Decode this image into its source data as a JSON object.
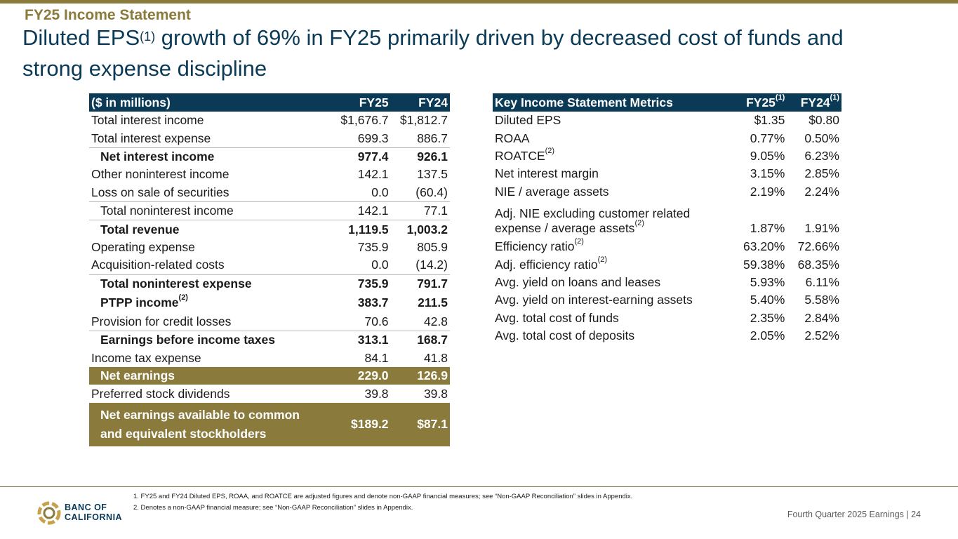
{
  "slide": {
    "section_label": "FY25 Income Statement",
    "headline_part1": "Diluted EPS",
    "headline_sup": "(1)",
    "headline_part2": " growth of 69% in FY25 primarily driven by decreased cost of funds and strong expense discipline"
  },
  "income_table": {
    "header": {
      "label": "($ in millions)",
      "fy25": "FY25",
      "fy24": "FY24"
    },
    "rows": [
      {
        "label": "Total interest income",
        "fy25": "$1,676.7",
        "fy24": "$1,812.7"
      },
      {
        "label": "Total interest expense",
        "fy25": "699.3",
        "fy24": "886.7"
      },
      {
        "label": "Net interest income",
        "fy25": "977.4",
        "fy24": "926.1"
      },
      {
        "label": "Other noninterest income",
        "fy25": "142.1",
        "fy24": "137.5"
      },
      {
        "label": "Loss on sale of securities",
        "fy25": "0.0",
        "fy24": "(60.4)"
      },
      {
        "label": "Total noninterest income",
        "fy25": "142.1",
        "fy24": "77.1"
      },
      {
        "label": "Total revenue",
        "fy25": "1,119.5",
        "fy24": "1,003.2"
      },
      {
        "label": "Operating expense",
        "fy25": "735.9",
        "fy24": "805.9"
      },
      {
        "label": "Acquisition-related costs",
        "fy25": "0.0",
        "fy24": "(14.2)"
      },
      {
        "label": "Total noninterest expense",
        "fy25": "735.9",
        "fy24": "791.7"
      },
      {
        "label": "PTPP income",
        "sup": "(2)",
        "fy25": "383.7",
        "fy24": "211.5"
      },
      {
        "label": "Provision for credit losses",
        "fy25": "70.6",
        "fy24": "42.8"
      },
      {
        "label": "Earnings before income taxes",
        "fy25": "313.1",
        "fy24": "168.7"
      },
      {
        "label": "Income tax expense",
        "fy25": "84.1",
        "fy24": "41.8"
      },
      {
        "label": "Net earnings",
        "fy25": "229.0",
        "fy24": "126.9"
      },
      {
        "label": "Preferred stock dividends",
        "fy25": "39.8",
        "fy24": "39.8"
      },
      {
        "label_line1": "Net earnings available to common",
        "label_line2": "and equivalent stockholders",
        "fy25": "$189.2",
        "fy24": "$87.1"
      }
    ]
  },
  "metrics_table": {
    "header": {
      "label": "Key Income Statement Metrics",
      "fy25": "FY25",
      "fy25_sup": "(1)",
      "fy24": "FY24",
      "fy24_sup": "(1)"
    },
    "rows": [
      {
        "label": "Diluted EPS",
        "fy25": "$1.35",
        "fy24": "$0.80"
      },
      {
        "label": "ROAA",
        "fy25": "0.77%",
        "fy24": "0.50%"
      },
      {
        "label": "ROATCE",
        "sup": "(2)",
        "fy25": "9.05%",
        "fy24": "6.23%"
      },
      {
        "label": "Net interest margin",
        "fy25": "3.15%",
        "fy24": "2.85%"
      },
      {
        "label": "NIE / average assets",
        "fy25": "2.19%",
        "fy24": "2.24%"
      },
      {
        "label_line1": "Adj. NIE excluding customer related",
        "label_line2": "expense / average assets",
        "sup": "(2)",
        "fy25": "1.87%",
        "fy24": "1.91%"
      },
      {
        "label": "Efficiency ratio",
        "sup": "(2)",
        "fy25": "63.20%",
        "fy24": "72.66%"
      },
      {
        "label": "Adj. efficiency ratio",
        "sup": "(2)",
        "fy25": "59.38%",
        "fy24": "68.35%"
      },
      {
        "label": "Avg. yield on loans and leases",
        "fy25": "5.93%",
        "fy24": "6.11%"
      },
      {
        "label": "Avg. yield on interest-earning assets",
        "fy25": "5.40%",
        "fy24": "5.58%"
      },
      {
        "label": "Avg. total cost of funds",
        "fy25": "2.35%",
        "fy24": "2.84%"
      },
      {
        "label": "Avg. total cost of deposits",
        "fy25": "2.05%",
        "fy24": "2.52%"
      }
    ]
  },
  "footnotes": [
    "1.  FY25 and FY24 Diluted EPS, ROAA, and ROATCE are adjusted figures and denote non-GAAP financial measures; see “Non-GAAP Reconciliation” slides in Appendix.",
    "2.  Denotes a non-GAAP financial measure; see “Non-GAAP Reconciliation” slides in Appendix."
  ],
  "logo": {
    "line1": "BANC OF",
    "line2": "CALIFORNIA"
  },
  "page_info": "Fourth Quarter 2025 Earnings |  24",
  "colors": {
    "navy": "#0b3a57",
    "gold": "#8a7a3c"
  }
}
